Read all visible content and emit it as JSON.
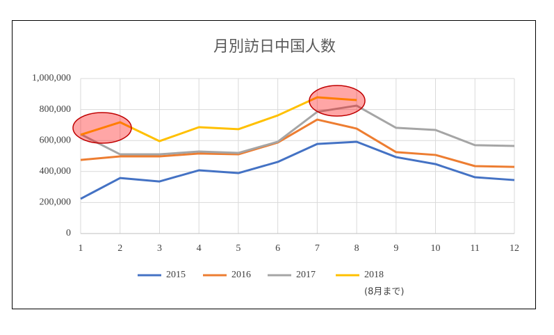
{
  "chart_data": {
    "type": "line",
    "title": "月別訪日中国人数",
    "x": [
      1,
      2,
      3,
      4,
      5,
      6,
      7,
      8,
      9,
      10,
      11,
      12
    ],
    "xlim": [
      1,
      12
    ],
    "xticks": [
      1,
      2,
      3,
      4,
      5,
      6,
      7,
      8,
      9,
      10,
      11,
      12
    ],
    "ylim": [
      0,
      1000000
    ],
    "yticks": [
      0,
      {
        "value": 200000,
        "label": "200,000"
      },
      {
        "value": 400000,
        "label": "400,000"
      },
      {
        "value": 600000,
        "label": "600,000"
      },
      {
        "value": 800000,
        "label": "800,000"
      },
      {
        "value": 1000000,
        "label": "1,000,000"
      }
    ],
    "grid": true,
    "legend": "bottom",
    "series": [
      {
        "name": "2015",
        "color": "#4472c4",
        "values": [
          224000,
          358000,
          336000,
          408000,
          390000,
          462000,
          578000,
          592000,
          493000,
          448000,
          363000,
          345000
        ]
      },
      {
        "name": "2016",
        "color": "#ed7d31",
        "values": [
          475000,
          498000,
          498000,
          516000,
          511000,
          587000,
          735000,
          677000,
          525000,
          507000,
          435000,
          430000
        ]
      },
      {
        "name": "2017",
        "color": "#a5a5a5",
        "values": [
          641000,
          511000,
          511000,
          529000,
          520000,
          592000,
          785000,
          825000,
          682000,
          668000,
          570000,
          565000
        ]
      },
      {
        "name": "2018",
        "color": "#ffc000",
        "values": [
          637000,
          718000,
          596000,
          686000,
          673000,
          762000,
          879000,
          861000,
          null,
          null,
          null,
          null
        ]
      }
    ],
    "annotations": [
      "(8月まで)"
    ]
  }
}
